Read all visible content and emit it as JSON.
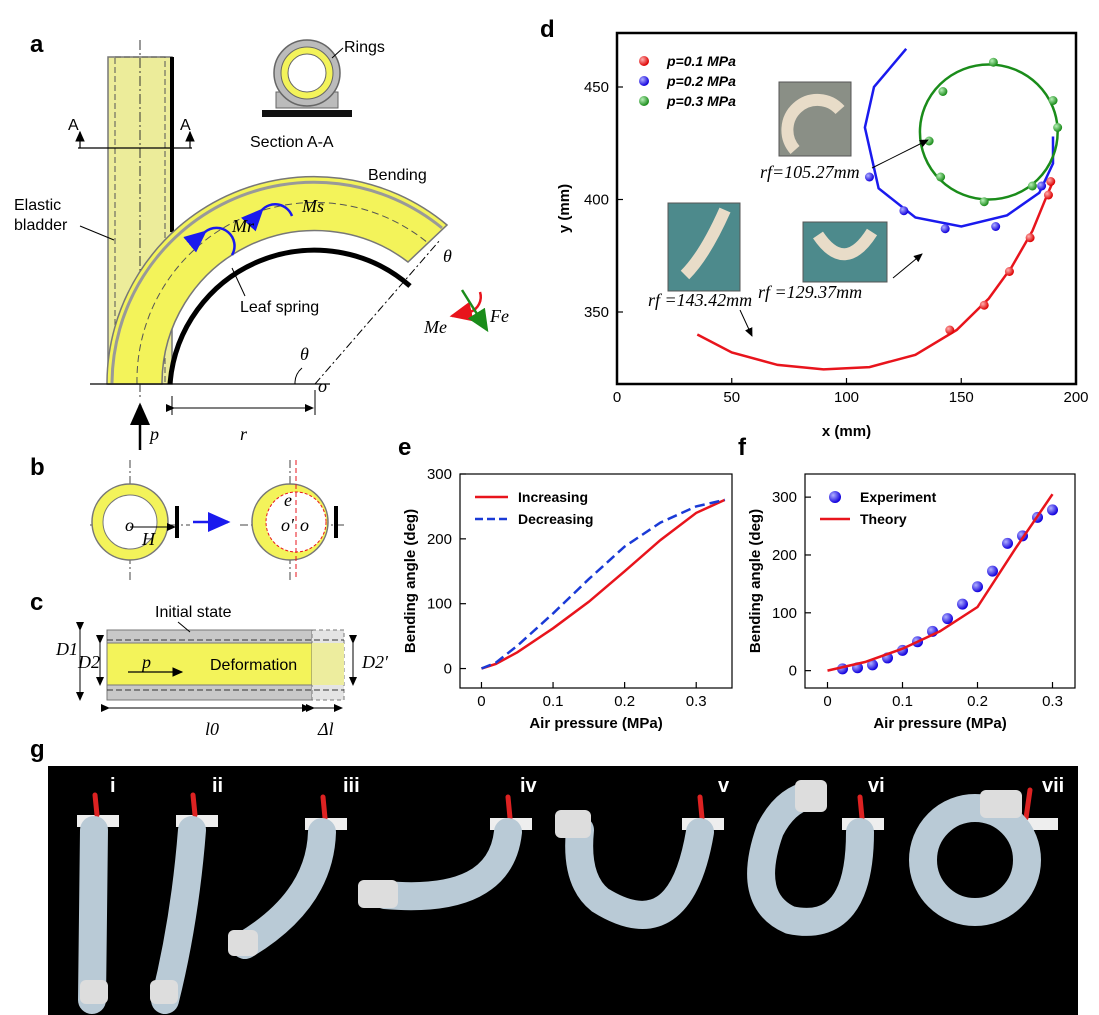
{
  "panel_labels": {
    "a": "a",
    "b": "b",
    "c": "c",
    "d": "d",
    "e": "e",
    "f": "f",
    "g": "g"
  },
  "panel_a": {
    "rings_label": "Rings",
    "section_label": "Section A-A",
    "bending_label": "Bending",
    "elastic_label_1": "Elastic",
    "elastic_label_2": "bladder",
    "leaf_spring_label": "Leaf spring",
    "section_mark": "A",
    "ms": "Ms",
    "mr": "Mr",
    "me": "Me",
    "fe": "Fe",
    "theta": "θ",
    "r": "r",
    "o": "o",
    "p": "p"
  },
  "panel_b": {
    "o": "o",
    "h": "H",
    "e": "e",
    "o1": "o'"
  },
  "panel_c": {
    "initial_state": "Initial state",
    "deformation": "Deformation",
    "p": "p",
    "d1": "D1",
    "d2": "D2",
    "d2p": "D2′",
    "l0": "l0",
    "dl": "Δl"
  },
  "panel_d_photos": {
    "r1": "rf =143.42mm",
    "r2": "rf =129.37mm",
    "r3": "rf=105.27mm"
  },
  "panel_g": {
    "labels": [
      "i",
      "ii",
      "iii",
      "iv",
      "v",
      "vi",
      "vii"
    ]
  },
  "colors": {
    "red": "#e8141c",
    "blue": "#1a1aee",
    "green": "#1a8c1a",
    "yellow": "#f3f35a",
    "bladder": "#ecec9a"
  },
  "chart_data": [
    {
      "id": "d",
      "type": "scatter",
      "xlabel": "x (mm)",
      "ylabel": "y (mm)",
      "xlim": [
        0,
        200
      ],
      "ylim": [
        318,
        474
      ],
      "xticks": [
        0,
        50,
        100,
        150,
        200
      ],
      "yticks": [
        350,
        400,
        450
      ],
      "legend_position": "top-left",
      "series": [
        {
          "name": "p=0.1 MPa",
          "color": "#e8141c",
          "curve": [
            [
              35,
              340
            ],
            [
              50,
              332
            ],
            [
              70,
              326.5
            ],
            [
              90,
              324.5
            ],
            [
              110,
              325.5
            ],
            [
              130,
              331
            ],
            [
              148,
              342
            ],
            [
              162,
              356
            ],
            [
              172,
              370
            ],
            [
              181,
              386
            ],
            [
              187,
              401
            ],
            [
              190,
              408
            ]
          ],
          "points": [
            [
              145,
              342
            ],
            [
              160,
              353
            ],
            [
              171,
              368
            ],
            [
              180,
              383
            ],
            [
              188,
              402
            ],
            [
              189,
              408
            ]
          ]
        },
        {
          "name": "p=0.2 MPa",
          "color": "#1a1aee",
          "curve": [
            [
              126,
              467
            ],
            [
              112,
              450
            ],
            [
              108,
              432
            ],
            [
              114,
              405
            ],
            [
              130,
              392
            ],
            [
              150,
              388
            ],
            [
              170,
              393
            ],
            [
              184,
              403
            ],
            [
              190,
              416
            ],
            [
              190,
              428
            ]
          ],
          "points": [
            [
              110,
              410
            ],
            [
              125,
              395
            ],
            [
              143,
              387
            ],
            [
              165,
              388
            ],
            [
              185,
              406
            ]
          ]
        },
        {
          "name": "p=0.3 MPa",
          "color": "#1a8c1a",
          "center": [
            162,
            430
          ],
          "radius": [
            30,
            30
          ],
          "points": [
            [
              164,
              461
            ],
            [
              142,
              448
            ],
            [
              136,
              426
            ],
            [
              141,
              410
            ],
            [
              160,
              399
            ],
            [
              181,
              406
            ],
            [
              192,
              432
            ],
            [
              190,
              444
            ]
          ]
        }
      ]
    },
    {
      "id": "e",
      "type": "line",
      "xlabel": "Air pressure (MPa)",
      "ylabel": "Bending angle (deg)",
      "xlim": [
        -0.03,
        0.35
      ],
      "ylim": [
        -30,
        300
      ],
      "xticks": [
        0,
        0.1,
        0.2,
        0.3
      ],
      "yticks": [
        0,
        100,
        200,
        300
      ],
      "legend_position": "top-left",
      "series": [
        {
          "name": "Increasing",
          "color": "#e8141c",
          "dash": false,
          "x": [
            0,
            0.02,
            0.05,
            0.1,
            0.15,
            0.2,
            0.25,
            0.3,
            0.34
          ],
          "y": [
            0,
            7,
            25,
            62,
            103,
            150,
            198,
            240,
            260
          ]
        },
        {
          "name": "Decreasing",
          "color": "#1a3ad6",
          "dash": true,
          "x": [
            0,
            0.02,
            0.05,
            0.1,
            0.15,
            0.2,
            0.25,
            0.3,
            0.34
          ],
          "y": [
            0,
            9,
            35,
            85,
            138,
            188,
            225,
            250,
            260
          ]
        }
      ]
    },
    {
      "id": "f",
      "type": "scatter",
      "xlabel": "Air pressure (MPa)",
      "ylabel": "Bending angle (deg)",
      "xlim": [
        -0.03,
        0.33
      ],
      "ylim": [
        -30,
        340
      ],
      "xticks": [
        0,
        0.1,
        0.2,
        0.3
      ],
      "yticks": [
        0,
        100,
        200,
        300
      ],
      "legend_position": "top-left",
      "series": [
        {
          "name": "Experiment",
          "color": "#1a1aee",
          "kind": "points",
          "x": [
            0.02,
            0.04,
            0.06,
            0.08,
            0.1,
            0.12,
            0.14,
            0.16,
            0.18,
            0.2,
            0.22,
            0.24,
            0.26,
            0.28,
            0.3
          ],
          "y": [
            3,
            5,
            10,
            22,
            35,
            50,
            68,
            90,
            115,
            145,
            172,
            220,
            233,
            265,
            278
          ]
        },
        {
          "name": "Theory",
          "color": "#e8141c",
          "kind": "line",
          "x": [
            0,
            0.05,
            0.1,
            0.15,
            0.2,
            0.25,
            0.3
          ],
          "y": [
            0,
            15,
            38,
            68,
            110,
            210,
            305
          ]
        }
      ]
    }
  ]
}
